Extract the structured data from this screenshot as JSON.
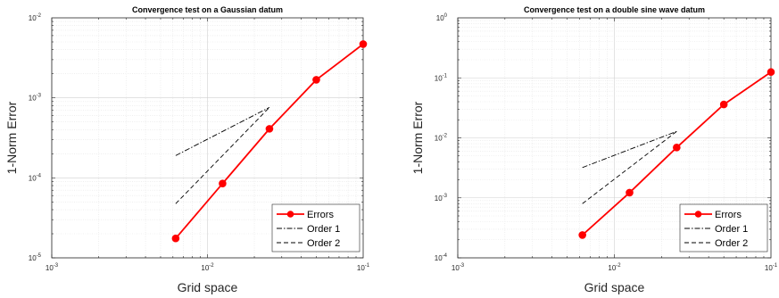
{
  "chart_data": [
    {
      "type": "line",
      "title": "Convergence test on a Gaussian datum",
      "xlabel": "Grid space",
      "ylabel": "1-Norm Error",
      "xscale": "log",
      "yscale": "log",
      "xlim": [
        0.001,
        0.1
      ],
      "ylim": [
        1e-05,
        0.01
      ],
      "x_ticks": [
        {
          "base": "10",
          "exp": "-3"
        },
        {
          "base": "10",
          "exp": "-2"
        },
        {
          "base": "10",
          "exp": "-1"
        }
      ],
      "y_ticks": [
        {
          "base": "10",
          "exp": "-5"
        },
        {
          "base": "10",
          "exp": "-4"
        },
        {
          "base": "10",
          "exp": "-3"
        },
        {
          "base": "10",
          "exp": "-2"
        }
      ],
      "grid": true,
      "legend_position": "bottom-right",
      "series": [
        {
          "name": "Errors",
          "style": "solid-marker",
          "color": "#ff0000",
          "x": [
            0.00625,
            0.0125,
            0.025,
            0.05,
            0.1
          ],
          "y": [
            1.75e-05,
            8.5e-05,
            0.00041,
            0.00168,
            0.0047
          ]
        },
        {
          "name": "Order 1",
          "style": "dashdot",
          "color": "#000000",
          "x": [
            0.00625,
            0.025
          ],
          "y": [
            0.00019,
            0.00076
          ]
        },
        {
          "name": "Order 2",
          "style": "dashed",
          "color": "#000000",
          "x": [
            0.00625,
            0.025
          ],
          "y": [
            4.75e-05,
            0.00076
          ]
        }
      ]
    },
    {
      "type": "line",
      "title": "Convergence test on a double sine wave datum",
      "xlabel": "Grid space",
      "ylabel": "1-Norm Error",
      "xscale": "log",
      "yscale": "log",
      "xlim": [
        0.001,
        0.1
      ],
      "ylim": [
        0.0001,
        1
      ],
      "x_ticks": [
        {
          "base": "10",
          "exp": "-3"
        },
        {
          "base": "10",
          "exp": "-2"
        },
        {
          "base": "10",
          "exp": "-1"
        }
      ],
      "y_ticks": [
        {
          "base": "10",
          "exp": "-4"
        },
        {
          "base": "10",
          "exp": "-3"
        },
        {
          "base": "10",
          "exp": "-2"
        },
        {
          "base": "10",
          "exp": "-1"
        },
        {
          "base": "10",
          "exp": "0"
        }
      ],
      "grid": true,
      "legend_position": "bottom-right",
      "series": [
        {
          "name": "Errors",
          "style": "solid-marker",
          "color": "#ff0000",
          "x": [
            0.00625,
            0.0125,
            0.025,
            0.05,
            0.1
          ],
          "y": [
            0.00024,
            0.00122,
            0.0069,
            0.036,
            0.125
          ]
        },
        {
          "name": "Order 1",
          "style": "dashdot",
          "color": "#000000",
          "x": [
            0.00625,
            0.025
          ],
          "y": [
            0.0032,
            0.0128
          ]
        },
        {
          "name": "Order 2",
          "style": "dashed",
          "color": "#000000",
          "x": [
            0.00625,
            0.025
          ],
          "y": [
            0.0008,
            0.0128
          ]
        }
      ]
    }
  ]
}
